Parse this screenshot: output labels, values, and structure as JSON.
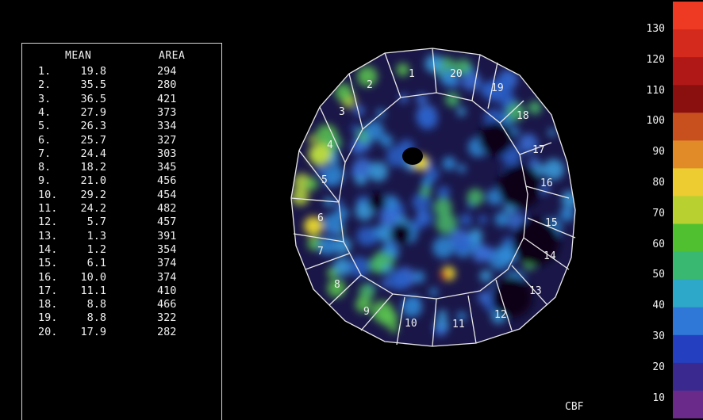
{
  "table": {
    "header_mean": "MEAN",
    "header_area": "AREA",
    "rows": [
      {
        "index": "1.",
        "mean": "19.8",
        "area": "294"
      },
      {
        "index": "2.",
        "mean": "35.5",
        "area": "280"
      },
      {
        "index": "3.",
        "mean": "36.5",
        "area": "421"
      },
      {
        "index": "4.",
        "mean": "27.9",
        "area": "373"
      },
      {
        "index": "5.",
        "mean": "26.3",
        "area": "334"
      },
      {
        "index": "6.",
        "mean": "25.7",
        "area": "327"
      },
      {
        "index": "7.",
        "mean": "24.4",
        "area": "303"
      },
      {
        "index": "8.",
        "mean": "18.2",
        "area": "345"
      },
      {
        "index": "9.",
        "mean": "21.0",
        "area": "456"
      },
      {
        "index": "10.",
        "mean": "29.2",
        "area": "454"
      },
      {
        "index": "11.",
        "mean": "24.2",
        "area": "482"
      },
      {
        "index": "12.",
        "mean": "5.7",
        "area": "457"
      },
      {
        "index": "13.",
        "mean": "1.3",
        "area": "391"
      },
      {
        "index": "14.",
        "mean": "1.2",
        "area": "354"
      },
      {
        "index": "15.",
        "mean": "6.1",
        "area": "374"
      },
      {
        "index": "16.",
        "mean": "10.0",
        "area": "374"
      },
      {
        "index": "17.",
        "mean": "11.1",
        "area": "410"
      },
      {
        "index": "18.",
        "mean": "8.8",
        "area": "466"
      },
      {
        "index": "19.",
        "mean": "8.8",
        "area": "322"
      },
      {
        "index": "20.",
        "mean": "17.9",
        "area": "282"
      }
    ]
  },
  "map": {
    "region_labels": [
      "1",
      "2",
      "3",
      "4",
      "5",
      "6",
      "7",
      "8",
      "9",
      "10",
      "11",
      "12",
      "13",
      "14",
      "15",
      "16",
      "17",
      "18",
      "19",
      "20"
    ]
  },
  "scale": {
    "ticks": [
      "130",
      "120",
      "110",
      "100",
      "90",
      "80",
      "70",
      "60",
      "50",
      "40",
      "30",
      "20",
      "10"
    ],
    "label": "CBF",
    "colors": [
      "#ee3a22",
      "#d42a1e",
      "#b01818",
      "#8a1010",
      "#c8501e",
      "#e08a28",
      "#eccc30",
      "#b8d030",
      "#50c030",
      "#38b870",
      "#2ea8c8",
      "#3078d8",
      "#2440c0",
      "#3a2a90",
      "#6a2a8a"
    ]
  }
}
